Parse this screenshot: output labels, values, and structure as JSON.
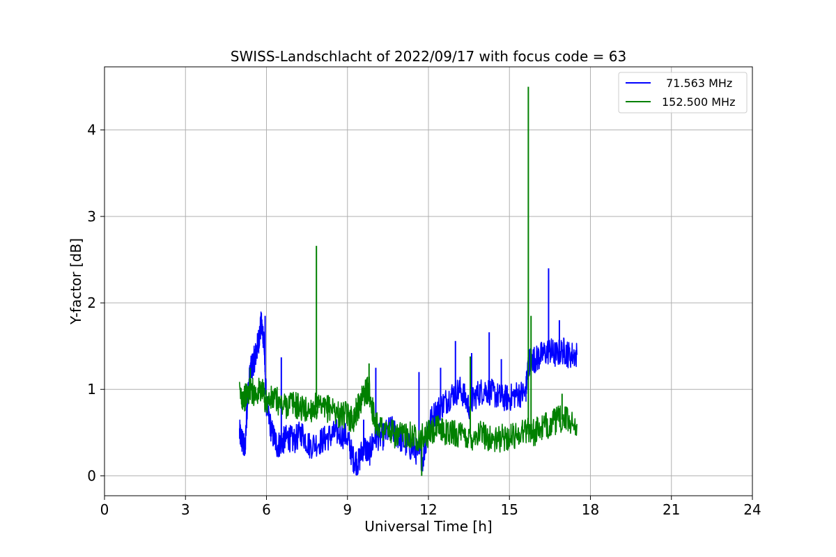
{
  "chart_data": {
    "type": "line",
    "title": "SWISS-Landschlacht of 2022/09/17 with focus code = 63",
    "xlabel": "Universal Time [h]",
    "ylabel": "Y-factor [dB]",
    "xlim": [
      0,
      24
    ],
    "ylim": [
      -0.23,
      4.73
    ],
    "xticks": [
      0,
      3,
      6,
      9,
      12,
      15,
      18,
      21,
      24
    ],
    "yticks": [
      0,
      1,
      2,
      3,
      4
    ],
    "grid": true,
    "legend_position": "top-right",
    "series": [
      {
        "name": "71.563 MHz",
        "color": "#0000ff",
        "x": [
          5.0,
          5.1,
          5.2,
          5.3,
          5.4,
          5.5,
          5.6,
          5.7,
          5.8,
          5.9,
          6.0,
          6.2,
          6.4,
          6.6,
          6.8,
          7.0,
          7.3,
          7.6,
          8.0,
          8.3,
          8.6,
          9.0,
          9.2,
          9.4,
          9.6,
          9.8,
          10.0,
          10.3,
          10.6,
          10.9,
          11.2,
          11.5,
          11.8,
          12.0,
          12.3,
          12.6,
          12.9,
          13.2,
          13.5,
          13.8,
          14.1,
          14.4,
          14.7,
          15.0,
          15.3,
          15.6,
          15.7,
          15.8,
          16.0,
          16.2,
          16.5,
          16.7,
          17.0,
          17.2,
          17.5
        ],
        "y": [
          0.5,
          0.4,
          0.3,
          0.9,
          1.2,
          1.3,
          1.4,
          1.55,
          1.75,
          1.6,
          0.8,
          0.5,
          0.35,
          0.4,
          0.45,
          0.4,
          0.5,
          0.35,
          0.4,
          0.45,
          0.5,
          0.45,
          0.2,
          0.15,
          0.35,
          0.25,
          0.45,
          0.45,
          0.55,
          0.45,
          0.35,
          0.3,
          0.2,
          0.6,
          0.75,
          0.85,
          0.95,
          1.0,
          0.8,
          0.95,
          1.0,
          0.95,
          0.9,
          0.9,
          0.95,
          0.95,
          1.3,
          1.35,
          1.35,
          1.4,
          1.45,
          1.4,
          1.45,
          1.4,
          1.4
        ],
        "spikes": [
          {
            "x": 5.95,
            "y": 1.85
          },
          {
            "x": 6.55,
            "y": 1.37
          },
          {
            "x": 10.05,
            "y": 1.25
          },
          {
            "x": 11.65,
            "y": 1.2
          },
          {
            "x": 12.45,
            "y": 1.25
          },
          {
            "x": 13.0,
            "y": 1.56
          },
          {
            "x": 13.6,
            "y": 1.42
          },
          {
            "x": 14.25,
            "y": 1.66
          },
          {
            "x": 14.7,
            "y": 1.35
          },
          {
            "x": 16.45,
            "y": 2.4
          },
          {
            "x": 16.85,
            "y": 1.8
          },
          {
            "x": 9.6,
            "y": 0.65
          }
        ]
      },
      {
        "name": "152.500 MHz",
        "color": "#008000",
        "x": [
          5.0,
          5.2,
          5.4,
          5.6,
          5.8,
          6.0,
          6.3,
          6.6,
          6.9,
          7.2,
          7.5,
          7.8,
          8.1,
          8.4,
          8.7,
          9.0,
          9.2,
          9.4,
          9.6,
          9.8,
          10.0,
          10.3,
          10.6,
          10.9,
          11.2,
          11.5,
          11.8,
          12.1,
          12.4,
          12.7,
          13.0,
          13.3,
          13.6,
          13.9,
          14.2,
          14.5,
          14.8,
          15.1,
          15.4,
          15.7,
          15.9,
          16.2,
          16.5,
          16.8,
          17.1,
          17.5
        ],
        "y": [
          0.95,
          0.9,
          1.0,
          0.95,
          1.0,
          0.85,
          0.9,
          0.8,
          0.85,
          0.8,
          0.75,
          0.8,
          0.75,
          0.8,
          0.7,
          0.7,
          0.65,
          0.8,
          0.95,
          1.0,
          0.65,
          0.55,
          0.5,
          0.45,
          0.5,
          0.45,
          0.45,
          0.5,
          0.55,
          0.5,
          0.5,
          0.45,
          0.45,
          0.5,
          0.45,
          0.4,
          0.45,
          0.45,
          0.5,
          0.55,
          0.5,
          0.55,
          0.6,
          0.65,
          0.65,
          0.6
        ],
        "spikes": [
          {
            "x": 7.85,
            "y": 2.66
          },
          {
            "x": 15.7,
            "y": 4.5
          },
          {
            "x": 15.8,
            "y": 1.85
          },
          {
            "x": 9.8,
            "y": 1.3
          },
          {
            "x": 5.4,
            "y": 1.25
          },
          {
            "x": 11.75,
            "y": 0.0
          },
          {
            "x": 13.55,
            "y": 1.38
          },
          {
            "x": 16.95,
            "y": 0.95
          }
        ]
      }
    ]
  }
}
